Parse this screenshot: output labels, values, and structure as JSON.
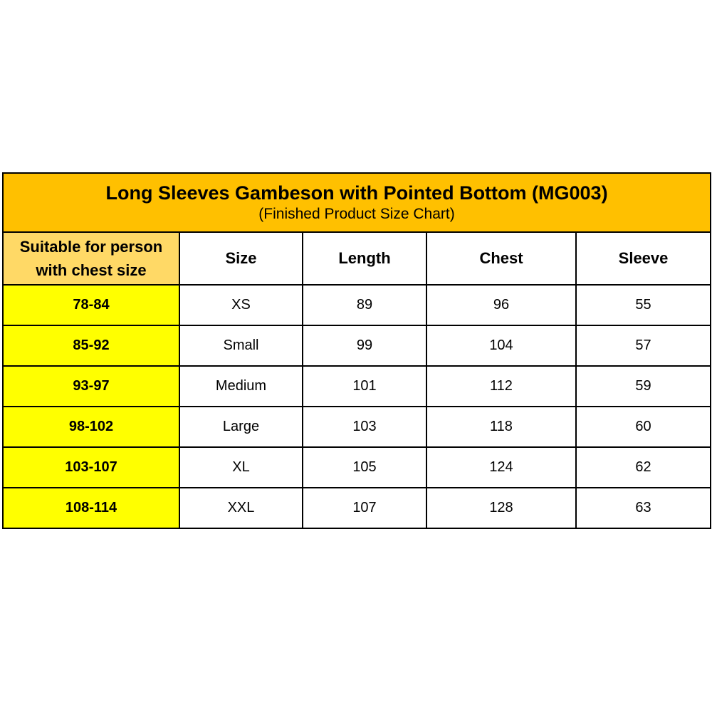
{
  "title": "Long Sleeves Gambeson with Pointed Bottom (MG003)",
  "subtitle": "(Finished Product Size Chart)",
  "colors": {
    "title_bg": "#FFC000",
    "first_header_bg": "#FFD966",
    "first_column_bg": "#FFFF00"
  },
  "headers": [
    "Suitable for person with chest size",
    "Size",
    "Length",
    "Chest",
    "Sleeve"
  ],
  "rows": [
    [
      "78-84",
      "XS",
      "89",
      "96",
      "55"
    ],
    [
      "85-92",
      "Small",
      "99",
      "104",
      "57"
    ],
    [
      "93-97",
      "Medium",
      "101",
      "112",
      "59"
    ],
    [
      "98-102",
      "Large",
      "103",
      "118",
      "60"
    ],
    [
      "103-107",
      "XL",
      "105",
      "124",
      "62"
    ],
    [
      "108-114",
      "XXL",
      "107",
      "128",
      "63"
    ]
  ]
}
